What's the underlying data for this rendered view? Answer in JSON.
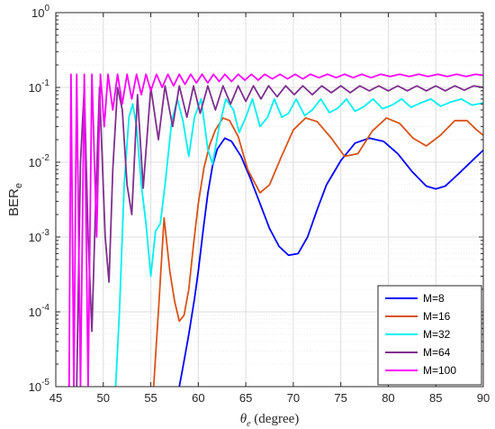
{
  "chart_data": {
    "type": "line",
    "title": "",
    "xlabel": "θe (degree)",
    "ylabel": "BERe",
    "xlim": [
      45,
      90
    ],
    "ylim": [
      1e-05,
      1
    ],
    "yscale": "log",
    "grid": true,
    "legend_position": "bottom-right",
    "x_ticks": [
      "45",
      "50",
      "55",
      "60",
      "65",
      "70",
      "75",
      "80",
      "85",
      "90"
    ],
    "y_ticks": [
      {
        "base": "10",
        "exp": "0"
      },
      {
        "base": "10",
        "exp": "-1"
      },
      {
        "base": "10",
        "exp": "-2"
      },
      {
        "base": "10",
        "exp": "-3"
      },
      {
        "base": "10",
        "exp": "-4"
      },
      {
        "base": "10",
        "exp": "-5"
      }
    ],
    "series": [
      {
        "name": "M=8",
        "color": "#0000ff",
        "points": [
          [
            58,
            1e-05
          ],
          [
            58.5,
            2.2e-05
          ],
          [
            59,
            5e-05
          ],
          [
            59.6,
            0.00015
          ],
          [
            60,
            0.00035
          ],
          [
            60.5,
            0.0012
          ],
          [
            61,
            0.0038
          ],
          [
            61.5,
            0.009
          ],
          [
            62,
            0.015
          ],
          [
            62.8,
            0.021
          ],
          [
            63.5,
            0.019
          ],
          [
            64.5,
            0.012
          ],
          [
            65.5,
            0.006
          ],
          [
            66.5,
            0.0028
          ],
          [
            67.5,
            0.0013
          ],
          [
            68.5,
            0.00075
          ],
          [
            69.5,
            0.00057
          ],
          [
            70.5,
            0.0006
          ],
          [
            71.5,
            0.001
          ],
          [
            72.5,
            0.0023
          ],
          [
            73.5,
            0.005
          ],
          [
            75,
            0.0105
          ],
          [
            76.5,
            0.018
          ],
          [
            78,
            0.021
          ],
          [
            79.5,
            0.019
          ],
          [
            81,
            0.013
          ],
          [
            82.5,
            0.0075
          ],
          [
            84,
            0.0048
          ],
          [
            85,
            0.0044
          ],
          [
            86,
            0.0048
          ],
          [
            87.5,
            0.0072
          ],
          [
            89,
            0.011
          ],
          [
            90,
            0.0145
          ]
        ]
      },
      {
        "name": "M=16",
        "color": "#d95319",
        "points": [
          [
            55.3,
            1e-05
          ],
          [
            55.8,
            0.0001
          ],
          [
            56.4,
            0.0018
          ],
          [
            57,
            0.00035
          ],
          [
            57.5,
            0.00014
          ],
          [
            58,
            7.5e-05
          ],
          [
            58.5,
            9e-05
          ],
          [
            59,
            0.0002
          ],
          [
            59.5,
            0.0008
          ],
          [
            60,
            0.0028
          ],
          [
            60.6,
            0.0085
          ],
          [
            61.2,
            0.017
          ],
          [
            61.8,
            0.027
          ],
          [
            62.6,
            0.039
          ],
          [
            63.3,
            0.036
          ],
          [
            64.2,
            0.022
          ],
          [
            65.2,
            0.008
          ],
          [
            66.5,
            0.0039
          ],
          [
            67.5,
            0.005
          ],
          [
            68.7,
            0.0115
          ],
          [
            70,
            0.027
          ],
          [
            71.3,
            0.039
          ],
          [
            72.5,
            0.035
          ],
          [
            74,
            0.021
          ],
          [
            75.4,
            0.012
          ],
          [
            76.8,
            0.013
          ],
          [
            78.3,
            0.026
          ],
          [
            79.8,
            0.039
          ],
          [
            81.2,
            0.033
          ],
          [
            82.6,
            0.021
          ],
          [
            84,
            0.0165
          ],
          [
            85.5,
            0.023
          ],
          [
            87,
            0.036
          ],
          [
            88.3,
            0.036
          ],
          [
            89.3,
            0.027
          ],
          [
            90,
            0.023
          ]
        ]
      },
      {
        "name": "M=32",
        "color": "#00f0f0",
        "points": [
          [
            51.3,
            1e-05
          ],
          [
            51.7,
            0.0001
          ],
          [
            52.2,
            0.005
          ],
          [
            52.7,
            0.04
          ],
          [
            53.1,
            0.06
          ],
          [
            53.5,
            0.03
          ],
          [
            54,
            0.005
          ],
          [
            54.5,
            0.0015
          ],
          [
            55,
            0.0003
          ],
          [
            55.5,
            0.0012
          ],
          [
            56,
            0.0015
          ],
          [
            56.5,
            0.005
          ],
          [
            57.2,
            0.035
          ],
          [
            57.8,
            0.07
          ],
          [
            58.4,
            0.035
          ],
          [
            59,
            0.012
          ],
          [
            59.6,
            0.04
          ],
          [
            60.3,
            0.07
          ],
          [
            61,
            0.015
          ],
          [
            61.5,
            0.0095
          ],
          [
            62.2,
            0.03
          ],
          [
            62.9,
            0.07
          ],
          [
            63.7,
            0.05
          ],
          [
            64.3,
            0.025
          ],
          [
            65,
            0.04
          ],
          [
            65.7,
            0.07
          ],
          [
            66.5,
            0.03
          ],
          [
            67.3,
            0.04
          ],
          [
            68,
            0.07
          ],
          [
            68.8,
            0.04
          ],
          [
            69.5,
            0.045
          ],
          [
            70.3,
            0.07
          ],
          [
            71.2,
            0.042
          ],
          [
            72,
            0.05
          ],
          [
            72.9,
            0.07
          ],
          [
            73.8,
            0.046
          ],
          [
            74.7,
            0.053
          ],
          [
            75.6,
            0.07
          ],
          [
            76.5,
            0.048
          ],
          [
            77.4,
            0.055
          ],
          [
            78.4,
            0.07
          ],
          [
            79.4,
            0.052
          ],
          [
            80.4,
            0.058
          ],
          [
            81.4,
            0.07
          ],
          [
            82.4,
            0.054
          ],
          [
            83.4,
            0.062
          ],
          [
            84.5,
            0.07
          ],
          [
            85.5,
            0.056
          ],
          [
            86.6,
            0.064
          ],
          [
            87.7,
            0.07
          ],
          [
            88.8,
            0.058
          ],
          [
            90,
            0.062
          ]
        ]
      },
      {
        "name": "M=64",
        "color": "#7e2f8e",
        "points": [
          [
            47.2,
            1e-05
          ],
          [
            47.6,
            0.01
          ],
          [
            48,
            0.1
          ],
          [
            48.4,
            0.001
          ],
          [
            48.8,
            5.5e-05
          ],
          [
            49.2,
            0.003
          ],
          [
            49.6,
            0.1
          ],
          [
            50.2,
            0.001
          ],
          [
            50.6,
            0.00025
          ],
          [
            51,
            0.008
          ],
          [
            51.5,
            0.1
          ],
          [
            52,
            0.05
          ],
          [
            52.5,
            0.005
          ],
          [
            53,
            0.002
          ],
          [
            53.6,
            0.08
          ],
          [
            54.2,
            0.0045
          ],
          [
            55,
            0.1
          ],
          [
            55.8,
            0.02
          ],
          [
            56.5,
            0.105
          ],
          [
            57.3,
            0.03
          ],
          [
            58,
            0.105
          ],
          [
            58.8,
            0.04
          ],
          [
            59.5,
            0.105
          ],
          [
            60.2,
            0.045
          ],
          [
            61,
            0.105
          ],
          [
            61.8,
            0.05
          ],
          [
            62.6,
            0.105
          ],
          [
            63.4,
            0.06
          ],
          [
            64.2,
            0.105
          ],
          [
            65,
            0.065
          ],
          [
            65.8,
            0.105
          ],
          [
            66.6,
            0.07
          ],
          [
            67.4,
            0.105
          ],
          [
            68.3,
            0.075
          ],
          [
            69.2,
            0.105
          ],
          [
            70.1,
            0.08
          ],
          [
            71,
            0.105
          ],
          [
            72,
            0.08
          ],
          [
            73,
            0.105
          ],
          [
            74,
            0.085
          ],
          [
            75,
            0.105
          ],
          [
            76,
            0.085
          ],
          [
            77,
            0.105
          ],
          [
            78,
            0.09
          ],
          [
            79,
            0.105
          ],
          [
            80,
            0.09
          ],
          [
            81,
            0.105
          ],
          [
            82,
            0.09
          ],
          [
            83,
            0.105
          ],
          [
            84,
            0.09
          ],
          [
            85,
            0.105
          ],
          [
            86,
            0.09
          ],
          [
            87,
            0.105
          ],
          [
            88,
            0.092
          ],
          [
            89,
            0.105
          ],
          [
            90,
            0.1
          ]
        ]
      },
      {
        "name": "M=100",
        "color": "#ff00ff",
        "points": [
          [
            46.4,
            1e-05
          ],
          [
            46.6,
            0.15
          ],
          [
            46.9,
            1e-05
          ],
          [
            47.2,
            0.15
          ],
          [
            47.6,
            1e-05
          ],
          [
            48,
            0.15
          ],
          [
            48.4,
            1e-05
          ],
          [
            48.8,
            0.15
          ],
          [
            49.3,
            0.001
          ],
          [
            49.7,
            0.15
          ],
          [
            50.1,
            0.03
          ],
          [
            50.5,
            0.15
          ],
          [
            51,
            0.05
          ],
          [
            51.5,
            0.15
          ],
          [
            52,
            0.06
          ],
          [
            52.5,
            0.15
          ],
          [
            53,
            0.07
          ],
          [
            53.5,
            0.15
          ],
          [
            54,
            0.08
          ],
          [
            54.5,
            0.15
          ],
          [
            55,
            0.09
          ],
          [
            55.6,
            0.15
          ],
          [
            56.2,
            0.1
          ],
          [
            56.8,
            0.15
          ],
          [
            57.4,
            0.105
          ],
          [
            58,
            0.15
          ],
          [
            58.6,
            0.11
          ],
          [
            59.2,
            0.15
          ],
          [
            59.8,
            0.115
          ],
          [
            60.4,
            0.15
          ],
          [
            61,
            0.115
          ],
          [
            61.6,
            0.15
          ],
          [
            62.2,
            0.12
          ],
          [
            62.8,
            0.15
          ],
          [
            63.5,
            0.12
          ],
          [
            64.2,
            0.15
          ],
          [
            64.9,
            0.125
          ],
          [
            65.6,
            0.15
          ],
          [
            66.3,
            0.125
          ],
          [
            67,
            0.15
          ],
          [
            67.8,
            0.13
          ],
          [
            68.6,
            0.15
          ],
          [
            69.4,
            0.13
          ],
          [
            70.2,
            0.15
          ],
          [
            71,
            0.13
          ],
          [
            71.8,
            0.15
          ],
          [
            72.7,
            0.135
          ],
          [
            73.6,
            0.15
          ],
          [
            74.5,
            0.135
          ],
          [
            75.4,
            0.15
          ],
          [
            76.3,
            0.135
          ],
          [
            77.2,
            0.15
          ],
          [
            78.2,
            0.135
          ],
          [
            79.2,
            0.15
          ],
          [
            80.2,
            0.14
          ],
          [
            81.2,
            0.15
          ],
          [
            82.2,
            0.14
          ],
          [
            83.2,
            0.15
          ],
          [
            84.2,
            0.14
          ],
          [
            85.2,
            0.15
          ],
          [
            86.2,
            0.14
          ],
          [
            87.2,
            0.15
          ],
          [
            88.2,
            0.14
          ],
          [
            89.2,
            0.15
          ],
          [
            90,
            0.145
          ]
        ]
      }
    ]
  }
}
